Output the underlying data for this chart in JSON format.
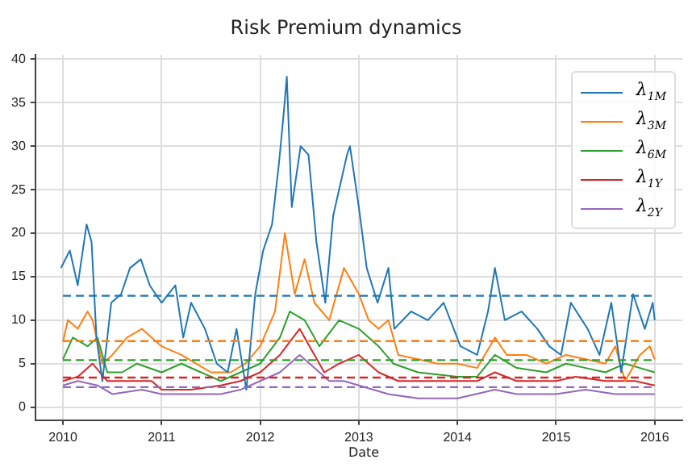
{
  "chart_data": {
    "type": "line",
    "title": "Risk Premium dynamics",
    "xlabel": "Date",
    "xlim": [
      2009.72,
      2016.28
    ],
    "xticks": [
      2010,
      2011,
      2012,
      2013,
      2014,
      2015,
      2016
    ],
    "ylim": [
      -1.5,
      40.5
    ],
    "yticks": [
      0,
      5,
      10,
      15,
      20,
      25,
      30,
      35,
      40
    ],
    "grid": true,
    "legend": "top right",
    "marker": "none",
    "line_style": "solid",
    "series": [
      {
        "name": "λ$_{1M}$",
        "color": "#1f77b4",
        "x": [
          2009.98,
          2010.07,
          2010.15,
          2010.24,
          2010.29,
          2010.34,
          2010.4,
          2010.49,
          2010.59,
          2010.68,
          2010.79,
          2010.88,
          2011.0,
          2011.14,
          2011.22,
          2011.3,
          2011.44,
          2011.56,
          2011.67,
          2011.76,
          2011.86,
          2011.95,
          2012.03,
          2012.12,
          2012.19,
          2012.24,
          2012.27,
          2012.32,
          2012.41,
          2012.49,
          2012.57,
          2012.66,
          2012.74,
          2012.88,
          2012.91,
          2013.0,
          2013.08,
          2013.19,
          2013.3,
          2013.36,
          2013.53,
          2013.7,
          2013.86,
          2014.03,
          2014.2,
          2014.31,
          2014.38,
          2014.48,
          2014.65,
          2014.81,
          2014.93,
          2015.05,
          2015.15,
          2015.32,
          2015.44,
          2015.56,
          2015.66,
          2015.78,
          2015.9,
          2015.98,
          2016.0
        ],
        "values": [
          16,
          18,
          14,
          21,
          19,
          8,
          3,
          12,
          13,
          16,
          17,
          14,
          12,
          14,
          8,
          12,
          9,
          5,
          4,
          9,
          2,
          13,
          18,
          21,
          28,
          34,
          38,
          23,
          30,
          29,
          19,
          12,
          22,
          29,
          30,
          23,
          16,
          12,
          16,
          9,
          11,
          10,
          12,
          7,
          6,
          11,
          16,
          10,
          11,
          9,
          7,
          6,
          12,
          9,
          6,
          12,
          4,
          13,
          9,
          12,
          10
        ]
      },
      {
        "name": "λ$_{3M}$",
        "color": "#ff7f0e",
        "x": [
          2010.0,
          2010.05,
          2010.15,
          2010.25,
          2010.3,
          2010.4,
          2010.5,
          2010.65,
          2010.8,
          2010.9,
          2011.0,
          2011.2,
          2011.35,
          2011.5,
          2011.7,
          2011.85,
          2012.0,
          2012.15,
          2012.25,
          2012.35,
          2012.45,
          2012.55,
          2012.7,
          2012.85,
          2013.0,
          2013.1,
          2013.2,
          2013.3,
          2013.4,
          2013.6,
          2013.8,
          2014.0,
          2014.2,
          2014.38,
          2014.5,
          2014.7,
          2014.9,
          2015.1,
          2015.3,
          2015.5,
          2015.6,
          2015.7,
          2015.85,
          2015.95,
          2016.0
        ],
        "values": [
          7.5,
          10,
          9,
          11,
          10,
          5,
          6,
          8,
          9,
          8,
          7,
          6,
          5,
          4,
          4,
          5,
          7,
          11,
          20,
          13,
          17,
          12,
          10,
          16,
          13,
          10,
          9,
          10,
          6,
          5.5,
          5,
          5,
          4.5,
          8,
          6,
          6,
          5,
          6,
          5.5,
          5,
          7,
          3,
          6,
          7,
          5.5
        ]
      },
      {
        "name": "λ$_{6M}$",
        "color": "#2ca02c",
        "x": [
          2010.0,
          2010.1,
          2010.25,
          2010.35,
          2010.45,
          2010.6,
          2010.75,
          2011.0,
          2011.2,
          2011.4,
          2011.6,
          2011.8,
          2012.0,
          2012.2,
          2012.3,
          2012.45,
          2012.6,
          2012.8,
          2013.0,
          2013.2,
          2013.35,
          2013.6,
          2014.0,
          2014.2,
          2014.38,
          2014.6,
          2014.9,
          2015.1,
          2015.3,
          2015.5,
          2015.7,
          2015.85,
          2016.0
        ],
        "values": [
          5.5,
          8,
          7,
          8,
          4,
          4,
          5,
          4,
          5,
          4,
          3,
          4,
          5,
          8,
          11,
          10,
          7,
          10,
          9,
          7,
          5,
          4,
          3.5,
          3.5,
          6,
          4.5,
          4,
          5,
          4.5,
          4,
          5,
          4.5,
          4
        ]
      },
      {
        "name": "λ$_{1Y}$",
        "color": "#d62728",
        "x": [
          2010.0,
          2010.15,
          2010.3,
          2010.45,
          2010.6,
          2010.9,
          2011.0,
          2011.3,
          2011.6,
          2011.8,
          2012.0,
          2012.2,
          2012.4,
          2012.5,
          2012.65,
          2012.8,
          2013.0,
          2013.2,
          2013.4,
          2013.8,
          2014.2,
          2014.38,
          2014.6,
          2015.0,
          2015.2,
          2015.5,
          2015.8,
          2016.0
        ],
        "values": [
          3,
          3.5,
          5,
          3,
          3,
          3,
          2,
          2,
          2.5,
          3,
          4,
          6,
          9,
          7,
          4,
          5,
          6,
          4,
          3,
          3,
          3,
          4,
          3,
          3,
          3.5,
          3,
          3,
          2.5
        ]
      },
      {
        "name": "λ$_{2Y}$",
        "color": "#9467bd",
        "x": [
          2010.0,
          2010.15,
          2010.35,
          2010.5,
          2010.8,
          2011.0,
          2011.3,
          2011.6,
          2011.8,
          2012.0,
          2012.2,
          2012.4,
          2012.55,
          2012.7,
          2012.85,
          2013.0,
          2013.3,
          2013.6,
          2014.0,
          2014.38,
          2014.6,
          2015.0,
          2015.3,
          2015.6,
          2016.0
        ],
        "values": [
          2.5,
          3,
          2.5,
          1.5,
          2,
          1.5,
          1.5,
          1.5,
          2,
          3,
          4,
          6,
          4.5,
          3,
          3,
          2.5,
          1.5,
          1,
          1,
          2,
          1.5,
          1.5,
          2,
          1.5,
          1.5
        ]
      }
    ],
    "ref_lines": [
      {
        "axis": "y",
        "value": 12.8,
        "color": "#1f77b4",
        "line_style": "dashed"
      },
      {
        "axis": "y",
        "value": 7.6,
        "color": "#ff7f0e",
        "line_style": "dashed"
      },
      {
        "axis": "y",
        "value": 5.4,
        "color": "#2ca02c",
        "line_style": "dashed"
      },
      {
        "axis": "y",
        "value": 3.4,
        "color": "#d62728",
        "line_style": "dashed"
      },
      {
        "axis": "y",
        "value": 2.3,
        "color": "#9467bd",
        "line_style": "dashed"
      }
    ]
  }
}
